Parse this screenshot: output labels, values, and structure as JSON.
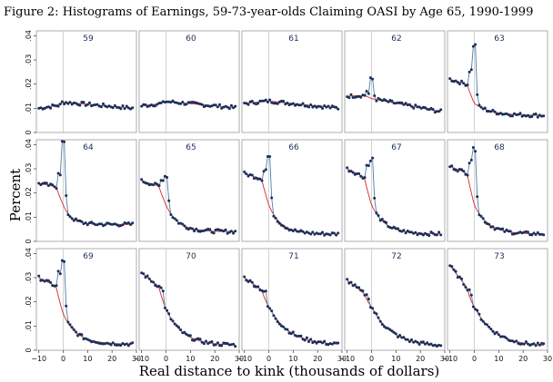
{
  "figure_title": "Figure 2: Histograms of Earnings, 59-73-year-olds Claiming OASI by Age 65, 1990-1999",
  "colors": {
    "histogram_line": "#4a7ea8",
    "histogram_marker": "#1b2f5a",
    "fit_line": "#d62728",
    "panel_border": "#999999",
    "kink_line": "#c8c8c8"
  },
  "chart_data": {
    "type": "line",
    "xlabel": "Real distance to kink (thousands of dollars)",
    "ylabel": "Percent",
    "xlim": [
      -11,
      30
    ],
    "ylim": [
      0,
      0.042
    ],
    "x_ticks": [
      -10,
      0,
      10,
      20,
      30
    ],
    "x_tick_labels": [
      "−10",
      "0",
      "10",
      "20",
      "30"
    ],
    "y_ticks": [
      0,
      0.01,
      0.02,
      0.03,
      0.04
    ],
    "y_tick_labels": [
      "0",
      ".01",
      ".02",
      ".03",
      ".04"
    ],
    "kink_x": 0,
    "grid": false,
    "panels": [
      {
        "label": "59",
        "pre_level": 0.01,
        "pre_slope": 0.00015,
        "spike": 0.0,
        "decay_level": 0.0125,
        "decay_end": 0.01,
        "decay_rate": 0.0
      },
      {
        "label": "60",
        "pre_level": 0.011,
        "pre_slope": 0.00012,
        "spike": 0.0,
        "decay_level": 0.0128,
        "decay_end": 0.0102,
        "decay_rate": 0.0
      },
      {
        "label": "61",
        "pre_level": 0.012,
        "pre_slope": 0.0001,
        "spike": 0.0,
        "decay_level": 0.013,
        "decay_end": 0.01,
        "decay_rate": 0.0
      },
      {
        "label": "62",
        "pre_level": 0.015,
        "pre_slope": 5e-05,
        "spike": 0.022,
        "decay_level": 0.014,
        "decay_end": 0.0085,
        "decay_rate": 0.0
      },
      {
        "label": "63",
        "pre_level": 0.022,
        "pre_slope": -0.0003,
        "spike": 0.036,
        "decay_level": 0.012,
        "decay_end": 0.007,
        "decay_rate": 0.15
      },
      {
        "label": "64",
        "pre_level": 0.024,
        "pre_slope": -0.0002,
        "spike": 0.041,
        "decay_level": 0.015,
        "decay_end": 0.007,
        "decay_rate": 0.3
      },
      {
        "label": "65",
        "pre_level": 0.025,
        "pre_slope": -0.0003,
        "spike": 0.027,
        "decay_level": 0.015,
        "decay_end": 0.004,
        "decay_rate": 0.2
      },
      {
        "label": "66",
        "pre_level": 0.028,
        "pre_slope": -0.0003,
        "spike": 0.035,
        "decay_level": 0.015,
        "decay_end": 0.003,
        "decay_rate": 0.2
      },
      {
        "label": "67",
        "pre_level": 0.03,
        "pre_slope": -0.0005,
        "spike": 0.034,
        "decay_level": 0.015,
        "decay_end": 0.003,
        "decay_rate": 0.18
      },
      {
        "label": "68",
        "pre_level": 0.031,
        "pre_slope": -0.0004,
        "spike": 0.038,
        "decay_level": 0.015,
        "decay_end": 0.003,
        "decay_rate": 0.18
      },
      {
        "label": "69",
        "pre_level": 0.03,
        "pre_slope": -0.0005,
        "spike": 0.037,
        "decay_level": 0.015,
        "decay_end": 0.0025,
        "decay_rate": 0.18
      },
      {
        "label": "70",
        "pre_level": 0.032,
        "pre_slope": -0.0008,
        "spike": 0.0,
        "decay_level": 0.017,
        "decay_end": 0.002,
        "decay_rate": 0.15
      },
      {
        "label": "71",
        "pre_level": 0.03,
        "pre_slope": -0.0007,
        "spike": 0.0,
        "decay_level": 0.018,
        "decay_end": 0.002,
        "decay_rate": 0.12
      },
      {
        "label": "72",
        "pre_level": 0.029,
        "pre_slope": -0.0008,
        "spike": 0.0,
        "decay_level": 0.018,
        "decay_end": 0.0015,
        "decay_rate": 0.12
      },
      {
        "label": "73",
        "pre_level": 0.035,
        "pre_slope": -0.0013,
        "spike": 0.0,
        "decay_level": 0.018,
        "decay_end": 0.0015,
        "decay_rate": 0.12
      }
    ]
  }
}
